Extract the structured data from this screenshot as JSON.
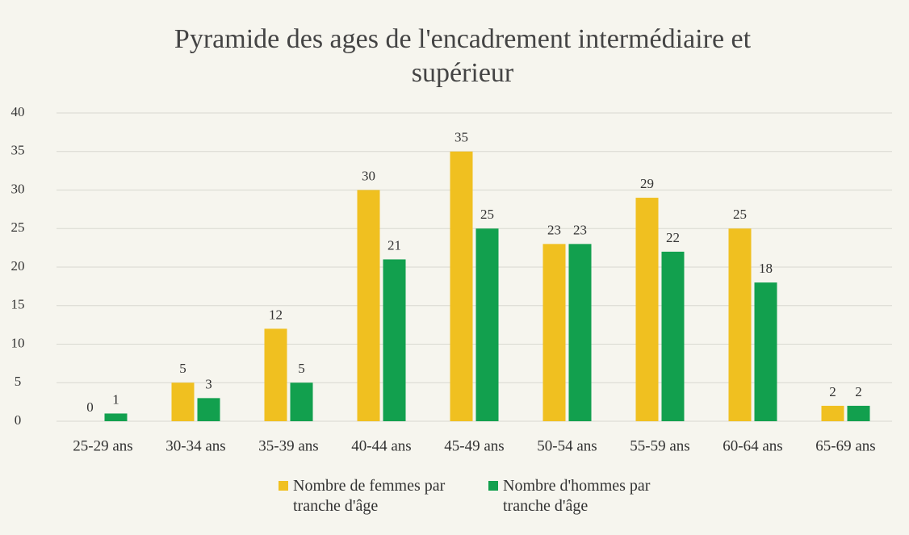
{
  "chart_data": {
    "type": "bar",
    "title": "Pyramide des ages de l'encadrement intermédiaire et supérieur",
    "categories": [
      "25-29 ans",
      "30-34 ans",
      "35-39 ans",
      "40-44 ans",
      "45-49 ans",
      "50-54 ans",
      "55-59 ans",
      "60-64 ans",
      "65-69 ans"
    ],
    "series": [
      {
        "name": "Nombre de femmes par tranche d'âge",
        "color": "#f0c020",
        "values": [
          0,
          5,
          12,
          30,
          35,
          23,
          29,
          25,
          2
        ]
      },
      {
        "name": "Nombre d'hommes par tranche d'âge",
        "color": "#12a04e",
        "values": [
          1,
          3,
          5,
          21,
          25,
          23,
          22,
          18,
          2
        ]
      }
    ],
    "ylim": [
      0,
      40
    ],
    "yticks": [
      0,
      5,
      10,
      15,
      20,
      25,
      30,
      35,
      40
    ],
    "grid": true,
    "legend": "bottom"
  }
}
